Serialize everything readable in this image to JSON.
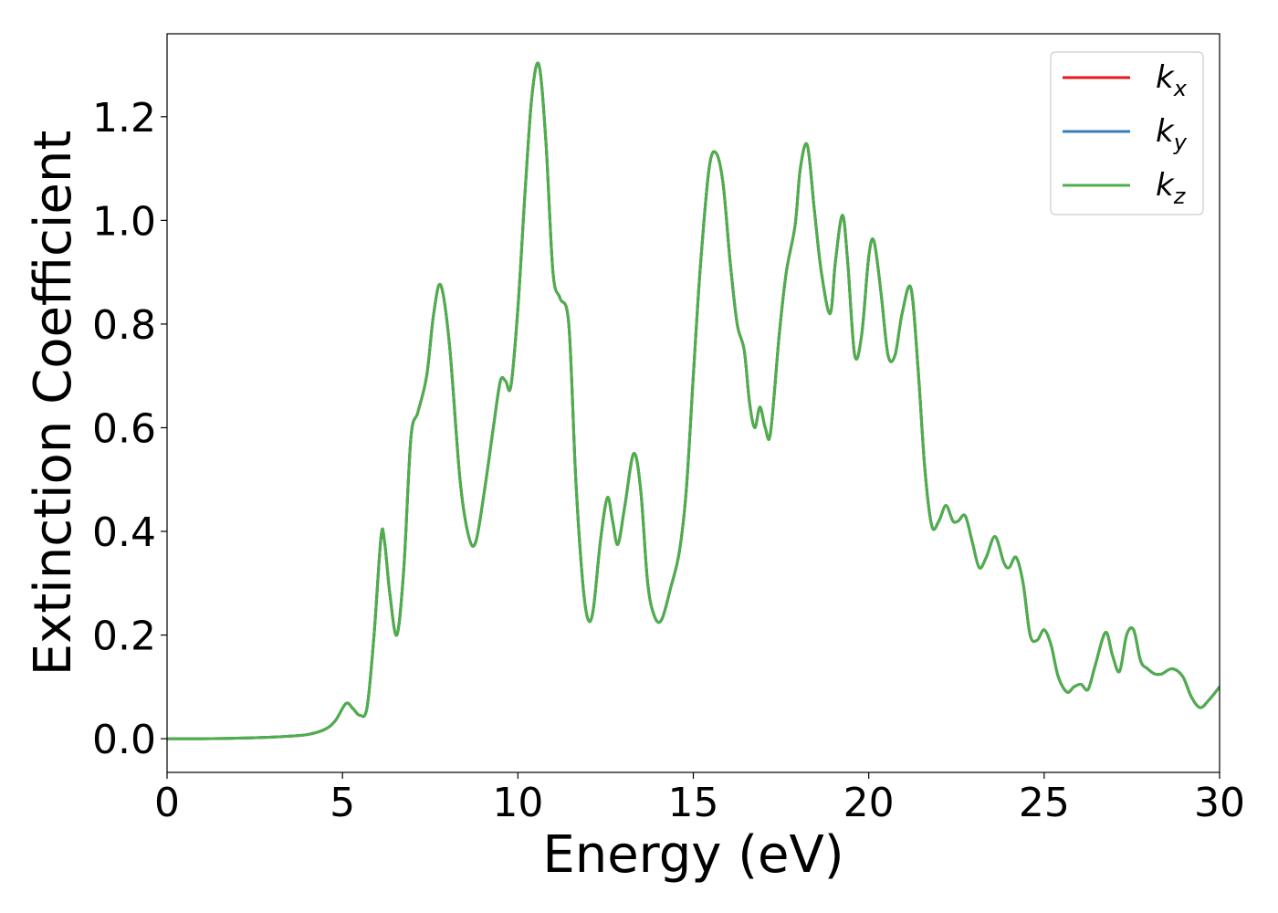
{
  "chart_data": {
    "type": "line",
    "xlabel": "Energy (eV)",
    "ylabel": "Extinction Coefficient",
    "xlim": [
      0,
      30
    ],
    "ylim": [
      -0.065,
      1.36
    ],
    "xticks": [
      0,
      5,
      10,
      15,
      20,
      25,
      30
    ],
    "yticks": [
      0.0,
      0.2,
      0.4,
      0.6,
      0.8,
      1.0,
      1.2
    ],
    "grid": false,
    "legend_position": "top-right",
    "x": [
      0,
      1,
      2,
      3,
      3.5,
      4,
      4.5,
      4.8,
      5.1,
      5.3,
      5.5,
      5.7,
      5.9,
      6.1,
      6.2,
      6.35,
      6.55,
      6.75,
      6.95,
      7.15,
      7.4,
      7.6,
      7.8,
      8.05,
      8.35,
      8.6,
      8.8,
      9.05,
      9.3,
      9.5,
      9.65,
      9.8,
      10.0,
      10.2,
      10.4,
      10.6,
      10.8,
      11.0,
      11.2,
      11.45,
      11.65,
      11.85,
      12.0,
      12.15,
      12.35,
      12.55,
      12.7,
      12.85,
      13.05,
      13.3,
      13.5,
      13.7,
      13.9,
      14.1,
      14.35,
      14.6,
      14.8,
      15.0,
      15.2,
      15.45,
      15.65,
      15.85,
      16.05,
      16.25,
      16.45,
      16.6,
      16.75,
      16.9,
      17.05,
      17.2,
      17.45,
      17.65,
      17.9,
      18.05,
      18.25,
      18.45,
      18.65,
      18.9,
      19.05,
      19.25,
      19.4,
      19.6,
      19.8,
      20.0,
      20.15,
      20.35,
      20.55,
      20.75,
      20.95,
      21.2,
      21.4,
      21.6,
      21.8,
      22.0,
      22.2,
      22.4,
      22.55,
      22.75,
      22.95,
      23.15,
      23.35,
      23.6,
      23.85,
      24.0,
      24.2,
      24.4,
      24.6,
      24.8,
      25.0,
      25.2,
      25.4,
      25.65,
      25.85,
      26.05,
      26.25,
      26.45,
      26.75,
      26.95,
      27.15,
      27.35,
      27.55,
      27.75,
      27.95,
      28.15,
      28.35,
      28.65,
      28.95,
      29.2,
      29.45,
      29.7,
      30.0
    ],
    "series": [
      {
        "name": "k_x",
        "color": "#e41a1c",
        "values": [
          0.0,
          0.0,
          0.001,
          0.003,
          0.005,
          0.008,
          0.018,
          0.035,
          0.068,
          0.058,
          0.045,
          0.06,
          0.2,
          0.39,
          0.38,
          0.28,
          0.2,
          0.33,
          0.58,
          0.63,
          0.7,
          0.82,
          0.875,
          0.76,
          0.5,
          0.39,
          0.38,
          0.48,
          0.6,
          0.69,
          0.69,
          0.68,
          0.83,
          1.05,
          1.24,
          1.3,
          1.15,
          0.9,
          0.85,
          0.8,
          0.5,
          0.3,
          0.23,
          0.25,
          0.38,
          0.465,
          0.42,
          0.375,
          0.45,
          0.55,
          0.48,
          0.3,
          0.235,
          0.23,
          0.29,
          0.36,
          0.48,
          0.7,
          0.91,
          1.1,
          1.13,
          1.07,
          0.92,
          0.8,
          0.75,
          0.65,
          0.6,
          0.64,
          0.6,
          0.59,
          0.78,
          0.9,
          0.99,
          1.1,
          1.145,
          1.02,
          0.9,
          0.82,
          0.92,
          1.01,
          0.92,
          0.74,
          0.78,
          0.93,
          0.96,
          0.86,
          0.74,
          0.74,
          0.82,
          0.87,
          0.72,
          0.52,
          0.41,
          0.42,
          0.45,
          0.42,
          0.42,
          0.43,
          0.38,
          0.33,
          0.35,
          0.39,
          0.34,
          0.33,
          0.35,
          0.3,
          0.2,
          0.19,
          0.21,
          0.18,
          0.12,
          0.09,
          0.1,
          0.105,
          0.095,
          0.14,
          0.205,
          0.16,
          0.13,
          0.2,
          0.21,
          0.15,
          0.135,
          0.125,
          0.125,
          0.135,
          0.12,
          0.08,
          0.06,
          0.075,
          0.1
        ]
      },
      {
        "name": "k_y",
        "color": "#377eb8",
        "values": [
          0.0,
          0.0,
          0.001,
          0.003,
          0.005,
          0.008,
          0.018,
          0.035,
          0.068,
          0.058,
          0.045,
          0.06,
          0.2,
          0.39,
          0.38,
          0.28,
          0.2,
          0.33,
          0.58,
          0.63,
          0.7,
          0.82,
          0.875,
          0.76,
          0.5,
          0.39,
          0.38,
          0.48,
          0.6,
          0.69,
          0.69,
          0.68,
          0.83,
          1.05,
          1.24,
          1.3,
          1.15,
          0.9,
          0.85,
          0.8,
          0.5,
          0.3,
          0.23,
          0.25,
          0.38,
          0.465,
          0.42,
          0.375,
          0.45,
          0.55,
          0.48,
          0.3,
          0.235,
          0.23,
          0.29,
          0.36,
          0.48,
          0.7,
          0.91,
          1.1,
          1.13,
          1.07,
          0.92,
          0.8,
          0.75,
          0.65,
          0.6,
          0.64,
          0.6,
          0.59,
          0.78,
          0.9,
          0.99,
          1.1,
          1.145,
          1.02,
          0.9,
          0.82,
          0.92,
          1.01,
          0.92,
          0.74,
          0.78,
          0.93,
          0.96,
          0.86,
          0.74,
          0.74,
          0.82,
          0.87,
          0.72,
          0.52,
          0.41,
          0.42,
          0.45,
          0.42,
          0.42,
          0.43,
          0.38,
          0.33,
          0.35,
          0.39,
          0.34,
          0.33,
          0.35,
          0.3,
          0.2,
          0.19,
          0.21,
          0.18,
          0.12,
          0.09,
          0.1,
          0.105,
          0.095,
          0.14,
          0.205,
          0.16,
          0.13,
          0.2,
          0.21,
          0.15,
          0.135,
          0.125,
          0.125,
          0.135,
          0.12,
          0.08,
          0.06,
          0.075,
          0.1
        ]
      },
      {
        "name": "k_z",
        "color": "#4daf4a",
        "values": [
          0.0,
          0.0,
          0.001,
          0.003,
          0.005,
          0.008,
          0.018,
          0.035,
          0.068,
          0.058,
          0.045,
          0.06,
          0.2,
          0.39,
          0.38,
          0.28,
          0.2,
          0.33,
          0.58,
          0.63,
          0.7,
          0.82,
          0.875,
          0.76,
          0.5,
          0.39,
          0.38,
          0.48,
          0.6,
          0.69,
          0.69,
          0.68,
          0.83,
          1.05,
          1.24,
          1.3,
          1.15,
          0.9,
          0.85,
          0.8,
          0.5,
          0.3,
          0.23,
          0.25,
          0.38,
          0.465,
          0.42,
          0.375,
          0.45,
          0.55,
          0.48,
          0.3,
          0.235,
          0.23,
          0.29,
          0.36,
          0.48,
          0.7,
          0.91,
          1.1,
          1.13,
          1.07,
          0.92,
          0.8,
          0.75,
          0.65,
          0.6,
          0.64,
          0.6,
          0.59,
          0.78,
          0.9,
          0.99,
          1.1,
          1.145,
          1.02,
          0.9,
          0.82,
          0.92,
          1.01,
          0.92,
          0.74,
          0.78,
          0.93,
          0.96,
          0.86,
          0.74,
          0.74,
          0.82,
          0.87,
          0.72,
          0.52,
          0.41,
          0.42,
          0.45,
          0.42,
          0.42,
          0.43,
          0.38,
          0.33,
          0.35,
          0.39,
          0.34,
          0.33,
          0.35,
          0.3,
          0.2,
          0.19,
          0.21,
          0.18,
          0.12,
          0.09,
          0.1,
          0.105,
          0.095,
          0.14,
          0.205,
          0.16,
          0.13,
          0.2,
          0.21,
          0.15,
          0.135,
          0.125,
          0.125,
          0.135,
          0.12,
          0.08,
          0.06,
          0.075,
          0.1
        ]
      }
    ],
    "legend": [
      {
        "base": "k",
        "sub": "x"
      },
      {
        "base": "k",
        "sub": "y"
      },
      {
        "base": "k",
        "sub": "z"
      }
    ]
  }
}
